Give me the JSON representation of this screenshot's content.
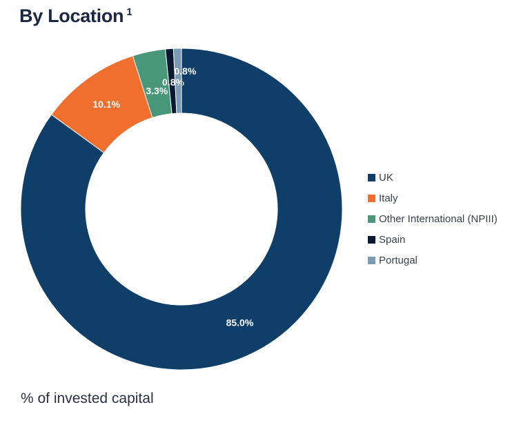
{
  "header": {
    "title": "By Location",
    "title_sup": "1"
  },
  "chart_data": {
    "type": "pie",
    "variant": "donut",
    "title": "By Location",
    "categories": [
      "UK",
      "Italy",
      "Other International (NPIII)",
      "Spain",
      "Portugal"
    ],
    "values": [
      85.0,
      10.1,
      3.3,
      0.8,
      0.8
    ],
    "value_labels": [
      "85.0%",
      "10.1%",
      "3.3%",
      "0.8%",
      "0.8%"
    ],
    "colors": [
      "#0f3e69",
      "#f06f2f",
      "#48977a",
      "#0b1a33",
      "#7a9bb6"
    ],
    "legend_position": "right",
    "start_angle": "12 o'clock, clockwise"
  },
  "footnote": "% of invested capital"
}
